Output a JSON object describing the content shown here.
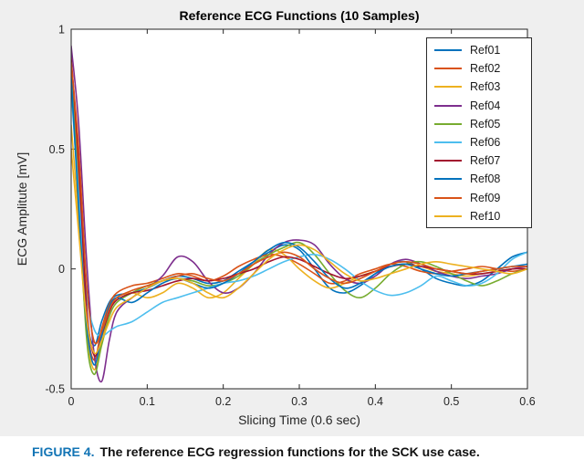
{
  "figure": {
    "background": "#efefef",
    "axis_color": "#262626",
    "plot_bg": "#ffffff"
  },
  "caption": {
    "label": "FIGURE 4.",
    "label_color": "#1274b5",
    "text": "The reference ECG regression functions for the SCK use case."
  },
  "chart_data": {
    "type": "line",
    "title": "Reference ECG Functions (10 Samples)",
    "xlabel": "Slicing Time (0.6 sec)",
    "ylabel": "ECG Amplitute [mV]",
    "xlim": [
      0,
      0.6
    ],
    "ylim": [
      -0.5,
      1
    ],
    "xticks": [
      0,
      0.1,
      0.2,
      0.3,
      0.4,
      0.5,
      0.6
    ],
    "xtick_labels": [
      "0",
      "0.1",
      "0.2",
      "0.3",
      "0.4",
      "0.5",
      "0.6"
    ],
    "yticks": [
      -0.5,
      0,
      0.5,
      1
    ],
    "ytick_labels": [
      "-0.5",
      "0",
      "0.5",
      "1"
    ],
    "grid": false,
    "box": true,
    "legend_position": "upper right",
    "x": [
      0,
      0.01,
      0.02,
      0.03,
      0.04,
      0.05,
      0.06,
      0.08,
      0.1,
      0.12,
      0.14,
      0.16,
      0.18,
      0.2,
      0.22,
      0.24,
      0.26,
      0.28,
      0.3,
      0.32,
      0.34,
      0.36,
      0.38,
      0.4,
      0.42,
      0.44,
      0.46,
      0.48,
      0.5,
      0.52,
      0.54,
      0.56,
      0.58,
      0.6
    ],
    "series": [
      {
        "name": "Ref01",
        "color": "#0072BD",
        "values": [
          0.78,
          0.35,
          -0.18,
          -0.32,
          -0.22,
          -0.14,
          -0.11,
          -0.1,
          -0.08,
          -0.05,
          -0.03,
          -0.04,
          -0.06,
          -0.05,
          -0.01,
          0.03,
          0.07,
          0.1,
          0.08,
          0.0,
          -0.08,
          -0.1,
          -0.07,
          -0.02,
          0.02,
          0.03,
          0.0,
          -0.04,
          -0.06,
          -0.07,
          -0.05,
          0.0,
          0.05,
          0.07
        ]
      },
      {
        "name": "Ref02",
        "color": "#D95319",
        "values": [
          0.85,
          0.4,
          -0.2,
          -0.38,
          -0.25,
          -0.15,
          -0.1,
          -0.07,
          -0.06,
          -0.04,
          -0.02,
          -0.03,
          -0.05,
          -0.03,
          0.01,
          0.04,
          0.06,
          0.05,
          0.02,
          -0.02,
          -0.06,
          -0.05,
          -0.02,
          0.0,
          0.02,
          0.01,
          -0.01,
          -0.02,
          -0.01,
          0.0,
          0.01,
          0.0,
          -0.01,
          0.0
        ]
      },
      {
        "name": "Ref03",
        "color": "#EDB120",
        "values": [
          0.6,
          0.2,
          -0.25,
          -0.42,
          -0.3,
          -0.18,
          -0.12,
          -0.1,
          -0.12,
          -0.1,
          -0.06,
          -0.08,
          -0.12,
          -0.1,
          -0.04,
          0.02,
          0.08,
          0.06,
          0.0,
          -0.05,
          -0.08,
          -0.06,
          -0.03,
          -0.01,
          0.01,
          0.02,
          0.01,
          -0.01,
          -0.02,
          -0.03,
          -0.02,
          -0.01,
          0.0,
          0.01
        ]
      },
      {
        "name": "Ref04",
        "color": "#7E2F8E",
        "values": [
          0.93,
          0.6,
          0.05,
          -0.35,
          -0.47,
          -0.3,
          -0.18,
          -0.12,
          -0.08,
          -0.03,
          0.05,
          0.03,
          -0.05,
          -0.1,
          -0.08,
          -0.02,
          0.06,
          0.11,
          0.12,
          0.1,
          0.02,
          -0.04,
          -0.06,
          -0.03,
          0.02,
          0.04,
          0.02,
          -0.01,
          -0.03,
          -0.04,
          -0.03,
          -0.02,
          0.0,
          0.01
        ]
      },
      {
        "name": "Ref05",
        "color": "#77AC30",
        "values": [
          0.82,
          0.3,
          -0.28,
          -0.44,
          -0.32,
          -0.2,
          -0.14,
          -0.1,
          -0.07,
          -0.05,
          -0.04,
          -0.05,
          -0.07,
          -0.06,
          -0.03,
          0.02,
          0.06,
          0.09,
          0.11,
          0.06,
          -0.02,
          -0.09,
          -0.12,
          -0.08,
          -0.02,
          0.02,
          0.03,
          0.01,
          -0.02,
          -0.05,
          -0.07,
          -0.05,
          -0.02,
          0.0
        ]
      },
      {
        "name": "Ref06",
        "color": "#4DBEEE",
        "values": [
          0.75,
          0.3,
          -0.1,
          -0.25,
          -0.28,
          -0.26,
          -0.24,
          -0.22,
          -0.18,
          -0.14,
          -0.12,
          -0.1,
          -0.08,
          -0.06,
          -0.05,
          -0.03,
          0.0,
          0.03,
          0.05,
          0.06,
          0.04,
          0.0,
          -0.05,
          -0.09,
          -0.11,
          -0.1,
          -0.07,
          -0.03,
          -0.05,
          -0.07,
          -0.06,
          -0.02,
          0.04,
          0.07
        ]
      },
      {
        "name": "Ref07",
        "color": "#A2142F",
        "values": [
          0.88,
          0.45,
          -0.15,
          -0.36,
          -0.28,
          -0.18,
          -0.13,
          -0.1,
          -0.09,
          -0.07,
          -0.05,
          -0.04,
          -0.05,
          -0.04,
          -0.02,
          0.0,
          0.03,
          0.05,
          0.04,
          0.01,
          -0.02,
          -0.04,
          -0.03,
          -0.01,
          0.01,
          0.02,
          0.01,
          0.0,
          -0.01,
          -0.02,
          -0.02,
          -0.01,
          0.0,
          0.0
        ]
      },
      {
        "name": "Ref08",
        "color": "#0072BD",
        "values": [
          0.8,
          0.25,
          -0.22,
          -0.4,
          -0.28,
          -0.16,
          -0.12,
          -0.14,
          -0.1,
          -0.06,
          -0.04,
          -0.06,
          -0.08,
          -0.06,
          -0.02,
          0.03,
          0.08,
          0.11,
          0.09,
          0.03,
          -0.04,
          -0.08,
          -0.06,
          -0.02,
          0.01,
          0.02,
          0.0,
          -0.02,
          -0.03,
          -0.02,
          -0.01,
          0.0,
          0.01,
          0.02
        ]
      },
      {
        "name": "Ref09",
        "color": "#D95319",
        "values": [
          0.86,
          0.5,
          -0.05,
          -0.3,
          -0.26,
          -0.17,
          -0.12,
          -0.09,
          -0.07,
          -0.05,
          -0.03,
          -0.02,
          -0.04,
          -0.05,
          -0.02,
          0.02,
          0.05,
          0.07,
          0.05,
          0.0,
          -0.04,
          -0.06,
          -0.04,
          -0.01,
          0.02,
          0.03,
          0.02,
          0.0,
          -0.01,
          -0.02,
          -0.01,
          0.0,
          0.01,
          0.01
        ]
      },
      {
        "name": "Ref10",
        "color": "#EDB120",
        "values": [
          0.5,
          0.15,
          -0.2,
          -0.35,
          -0.3,
          -0.22,
          -0.16,
          -0.12,
          -0.08,
          -0.05,
          -0.04,
          -0.06,
          -0.1,
          -0.12,
          -0.08,
          -0.02,
          0.04,
          0.08,
          0.1,
          0.08,
          0.03,
          -0.02,
          -0.05,
          -0.04,
          -0.02,
          0.0,
          0.02,
          0.03,
          0.02,
          0.01,
          0.0,
          -0.01,
          -0.02,
          0.0
        ]
      }
    ]
  }
}
